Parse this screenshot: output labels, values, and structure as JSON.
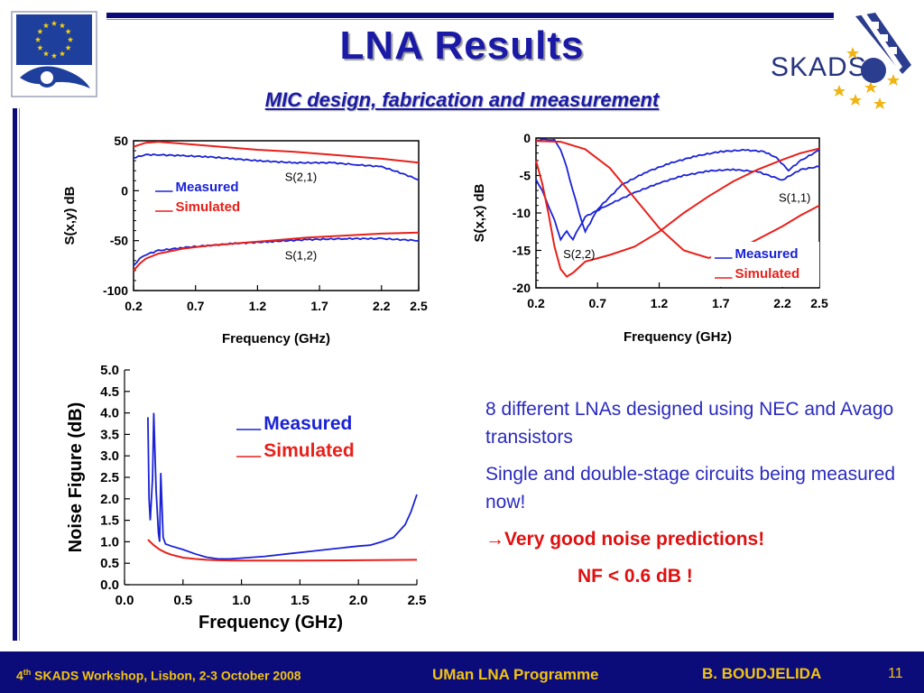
{
  "slide": {
    "title": "LNA Results",
    "subtitle": "MIC design, fabrication and measurement"
  },
  "colors": {
    "measured": "#1a22d6",
    "simulated": "#e8201a",
    "title": "#1a1aa6",
    "footer_bg": "#0b0b7a",
    "footer_text": "#f2c40f"
  },
  "logos": {
    "eu": "eu-fp6-logo",
    "skads": "SKADS"
  },
  "bullets": [
    "8 different LNAs designed using NEC and Avago transistors",
    "Single and double-stage circuits being measured now!",
    "Very good noise predictions!",
    "NF < 0.6 dB !"
  ],
  "bullet_arrow": "→",
  "footer": {
    "workshop_prefix": "4",
    "workshop_sup": "th",
    "workshop_rest": " SKADS Workshop, Lisbon, 2-3 October 2008",
    "programme": "UMan LNA Programme",
    "author": "B. BOUDJELIDA",
    "page": "11"
  },
  "chart_data": [
    {
      "id": "sxy",
      "type": "line",
      "xlabel": "Frequency (GHz)",
      "ylabel": "S(x,y) dB",
      "xlim": [
        0.2,
        2.5
      ],
      "ylim": [
        -100,
        50
      ],
      "xticks": [
        "0.2",
        "0.7",
        "1.2",
        "1.7",
        "2.2",
        "2.5"
      ],
      "xtick_values": [
        0.2,
        0.7,
        1.2,
        1.7,
        2.2,
        2.5
      ],
      "yticks": [
        "50",
        "0",
        "-50",
        "-100"
      ],
      "ytick_values": [
        50,
        0,
        -50,
        -100
      ],
      "legend": [
        "Measured",
        "Simulated"
      ],
      "annotations": [
        {
          "text": "S(2,1)",
          "x": 1.55,
          "y": 10
        },
        {
          "text": "S(1,2)",
          "x": 1.55,
          "y": -69
        }
      ],
      "series": [
        {
          "name": "Measured",
          "curve": "S(2,1)",
          "x": [
            0.2,
            0.3,
            0.4,
            0.6,
            0.8,
            1.0,
            1.2,
            1.5,
            1.8,
            2.0,
            2.2,
            2.35,
            2.5
          ],
          "y": [
            33,
            36,
            36,
            35,
            34,
            32,
            30,
            28,
            28,
            26,
            24,
            18,
            11
          ]
        },
        {
          "name": "Simulated",
          "curve": "S(2,1)",
          "x": [
            0.2,
            0.3,
            0.4,
            0.6,
            0.8,
            1.0,
            1.2,
            1.5,
            1.8,
            2.0,
            2.2,
            2.5
          ],
          "y": [
            44,
            48,
            49,
            47,
            45,
            43,
            41,
            39,
            36,
            34,
            32,
            28
          ]
        },
        {
          "name": "Measured",
          "curve": "S(1,2)",
          "x": [
            0.2,
            0.25,
            0.3,
            0.4,
            0.6,
            0.8,
            1.0,
            1.3,
            1.6,
            1.9,
            2.2,
            2.5
          ],
          "y": [
            -75,
            -68,
            -64,
            -60,
            -57,
            -55,
            -53,
            -51,
            -49,
            -48,
            -48,
            -50
          ]
        },
        {
          "name": "Simulated",
          "curve": "S(1,2)",
          "x": [
            0.2,
            0.25,
            0.3,
            0.4,
            0.6,
            0.8,
            1.0,
            1.3,
            1.6,
            1.9,
            2.2,
            2.5
          ],
          "y": [
            -80,
            -73,
            -68,
            -63,
            -58,
            -55,
            -53,
            -50,
            -47,
            -45,
            -43,
            -42
          ]
        }
      ]
    },
    {
      "id": "sxx",
      "type": "line",
      "xlabel": "Frequency (GHz)",
      "ylabel": "S(x,x) dB",
      "xlim": [
        0.2,
        2.5
      ],
      "ylim": [
        -20,
        0
      ],
      "xticks": [
        "0.2",
        "0.7",
        "1.2",
        "1.7",
        "2.2",
        "2.5"
      ],
      "xtick_values": [
        0.2,
        0.7,
        1.2,
        1.7,
        2.2,
        2.5
      ],
      "yticks": [
        "0",
        "-5",
        "-10",
        "-15",
        "-20"
      ],
      "ytick_values": [
        0,
        -5,
        -10,
        -15,
        -20
      ],
      "legend": [
        "Measured",
        "Simulated"
      ],
      "annotations": [
        {
          "text": "S(1,1)",
          "x": 2.3,
          "y": -8.5
        },
        {
          "text": "S(2,2)",
          "x": 0.55,
          "y": -16
        }
      ],
      "series": [
        {
          "name": "Measured",
          "curve": "S(1,1)",
          "x": [
            0.2,
            0.25,
            0.3,
            0.35,
            0.4,
            0.45,
            0.5,
            0.55,
            0.6,
            0.7,
            0.9,
            1.1,
            1.3,
            1.5,
            1.7,
            1.9,
            2.05,
            2.15,
            2.25,
            2.35,
            2.5
          ],
          "y": [
            -0.3,
            -0.2,
            -0.2,
            -0.3,
            -1.5,
            -4,
            -7,
            -10,
            -12.5,
            -9.5,
            -6.2,
            -4.5,
            -3.3,
            -2.4,
            -1.8,
            -1.6,
            -1.8,
            -2.6,
            -4.3,
            -3,
            -1.6
          ]
        },
        {
          "name": "Measured",
          "curve": "S(2,2)",
          "x": [
            0.2,
            0.25,
            0.3,
            0.35,
            0.4,
            0.45,
            0.5,
            0.55,
            0.6,
            0.8,
            1.0,
            1.2,
            1.4,
            1.6,
            1.8,
            2.0,
            2.2,
            2.35,
            2.5
          ],
          "y": [
            -5.5,
            -7,
            -9,
            -11,
            -13.5,
            -12.5,
            -13.5,
            -12,
            -10.5,
            -8.8,
            -7.3,
            -6,
            -5,
            -4.4,
            -4.2,
            -4.5,
            -5.6,
            -4.2,
            -3.8
          ]
        },
        {
          "name": "Simulated",
          "curve": "S(1,1)",
          "x": [
            0.2,
            0.4,
            0.6,
            0.8,
            1.0,
            1.2,
            1.4,
            1.6,
            1.8,
            2.0,
            2.2,
            2.35,
            2.5
          ],
          "y": [
            -0.4,
            -0.5,
            -1.5,
            -4,
            -8,
            -12,
            -15,
            -16,
            -15.2,
            -13.5,
            -11.8,
            -10.3,
            -9
          ]
        },
        {
          "name": "Simulated",
          "curve": "S(2,2)",
          "x": [
            0.2,
            0.25,
            0.3,
            0.35,
            0.4,
            0.45,
            0.5,
            0.6,
            0.8,
            1.0,
            1.2,
            1.4,
            1.6,
            1.8,
            2.0,
            2.2,
            2.35,
            2.5
          ],
          "y": [
            -3,
            -6,
            -10,
            -14.5,
            -17.5,
            -18.5,
            -18,
            -16.5,
            -15.6,
            -14.5,
            -12.5,
            -10,
            -7.8,
            -5.8,
            -4.2,
            -2.9,
            -2,
            -1.4
          ]
        }
      ]
    },
    {
      "id": "nf",
      "type": "line",
      "xlabel": "Frequency (GHz)",
      "ylabel": "Noise Figure (dB)",
      "xlim": [
        0.0,
        2.5
      ],
      "ylim": [
        0.0,
        5.0
      ],
      "xticks": [
        "0.0",
        "0.5",
        "1.0",
        "1.5",
        "2.0",
        "2.5"
      ],
      "xtick_values": [
        0.0,
        0.5,
        1.0,
        1.5,
        2.0,
        2.5
      ],
      "yticks": [
        "0.0",
        "0.5",
        "1.0",
        "1.5",
        "2.0",
        "2.5",
        "3.0",
        "3.5",
        "4.0",
        "4.5",
        "5.0"
      ],
      "ytick_values": [
        0.0,
        0.5,
        1.0,
        1.5,
        2.0,
        2.5,
        3.0,
        3.5,
        4.0,
        4.5,
        5.0
      ],
      "legend": [
        "Measured",
        "Simulated"
      ],
      "annotations": [],
      "series": [
        {
          "name": "Measured",
          "x": [
            0.2,
            0.21,
            0.22,
            0.24,
            0.25,
            0.27,
            0.29,
            0.3,
            0.31,
            0.33,
            0.35,
            0.4,
            0.5,
            0.6,
            0.7,
            0.8,
            0.9,
            1.0,
            1.2,
            1.4,
            1.6,
            1.8,
            2.0,
            2.1,
            2.2,
            2.3,
            2.35,
            2.4,
            2.45,
            2.5
          ],
          "y": [
            3.9,
            2.0,
            1.5,
            2.5,
            4.0,
            2.2,
            1.2,
            1.0,
            2.6,
            1.1,
            0.95,
            0.9,
            0.82,
            0.72,
            0.64,
            0.6,
            0.6,
            0.62,
            0.66,
            0.72,
            0.78,
            0.84,
            0.9,
            0.92,
            1.0,
            1.1,
            1.25,
            1.4,
            1.7,
            2.1
          ]
        },
        {
          "name": "Simulated",
          "x": [
            0.2,
            0.25,
            0.3,
            0.35,
            0.4,
            0.5,
            0.6,
            0.7,
            0.8,
            1.0,
            1.2,
            1.5,
            2.0,
            2.5
          ],
          "y": [
            1.05,
            0.92,
            0.82,
            0.75,
            0.7,
            0.63,
            0.6,
            0.58,
            0.57,
            0.56,
            0.56,
            0.56,
            0.57,
            0.58
          ]
        }
      ]
    }
  ]
}
